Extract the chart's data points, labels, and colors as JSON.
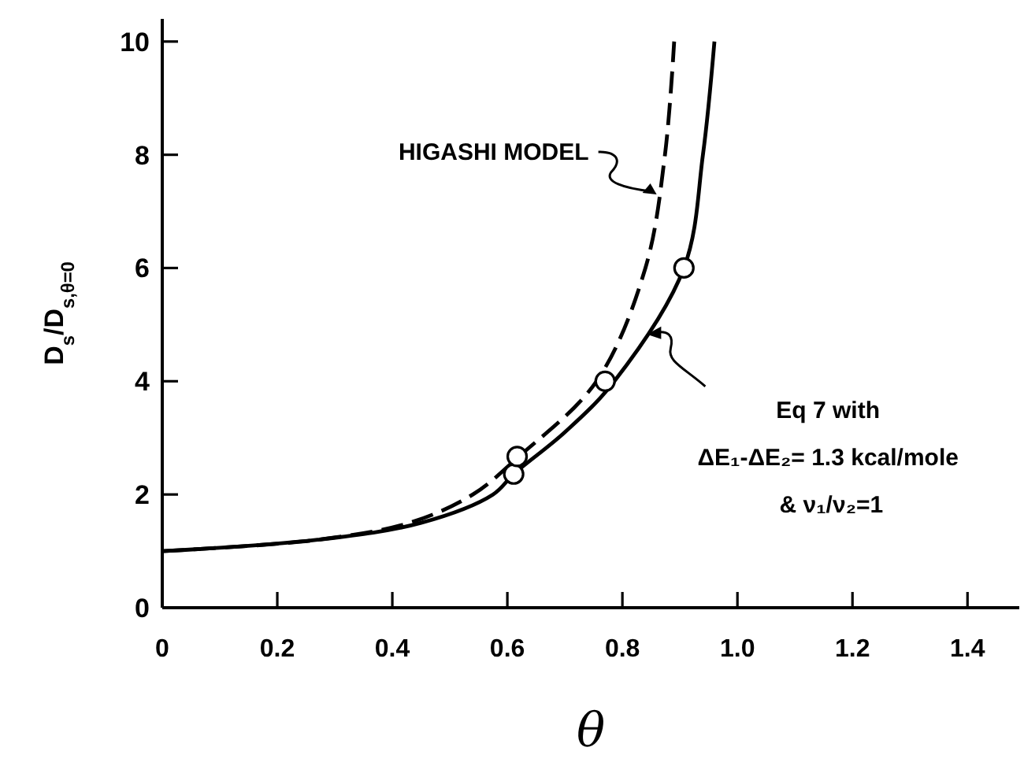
{
  "chart_data": {
    "type": "line",
    "xlabel": "θ",
    "ylabel": "D$_{s}$/D$_{s,θ=0}$",
    "xlim": [
      0,
      1.49
    ],
    "ylim": [
      0,
      10.4
    ],
    "xticks": [
      0,
      0.2,
      0.4,
      0.6,
      0.8,
      {
        "value": 1,
        "label": "1.0"
      },
      1.2,
      1.4
    ],
    "yticks": [
      0,
      2,
      4,
      6,
      8,
      10
    ],
    "grid": false,
    "series": [
      {
        "color": "#000000",
        "line_style": "dashed",
        "marker": "none",
        "x": [
          0,
          0.27,
          0.43,
          0.54,
          0.62,
          0.755,
          0.84,
          0.874,
          0.89
        ],
        "values": [
          1,
          1.2,
          1.5,
          2,
          2.67,
          4,
          6,
          8,
          10
        ]
      },
      {
        "color": "#000000",
        "line_style": "solid",
        "marker": "none",
        "x": [
          0,
          0.27,
          0.45,
          0.575,
          0.611,
          0.7,
          0.786,
          0.907,
          0.94,
          0.96
        ],
        "values": [
          1,
          1.2,
          1.5,
          2,
          2.36,
          3.1,
          4,
          6,
          8,
          10
        ]
      },
      {
        "type": "scatter",
        "color": "#000000",
        "marker": "circle",
        "x": [
          0.611,
          0.617,
          0.77,
          0.907
        ],
        "values": [
          2.36,
          2.67,
          4,
          6
        ]
      }
    ],
    "annotations": [
      {
        "text": "HIGASHI MODEL",
        "x": 0.865,
        "y": 7.3
      },
      {
        "text": "Eq 7 with\nΔE₁-ΔE₂= 1.3 kcal/mole\n& ν₁/ν₂=1",
        "x": 0.84,
        "y": 4.8
      }
    ]
  }
}
